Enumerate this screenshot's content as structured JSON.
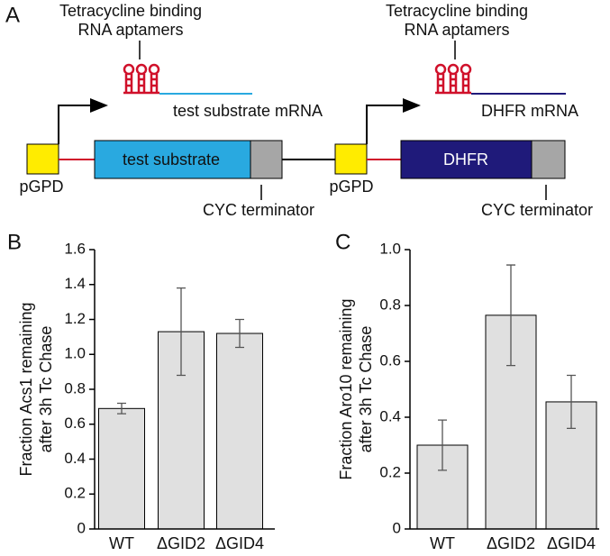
{
  "diagram": {
    "panel": "A",
    "constructs": [
      {
        "aptamer_label": [
          "Tetracycline binding",
          "RNA aptamers"
        ],
        "mrna": "test substrate mRNA",
        "promoter": "pGPD",
        "gene": "test substrate",
        "terminator": "CYC terminator"
      },
      {
        "aptamer_label": [
          "Tetracycline binding",
          "RNA aptamers"
        ],
        "mrna": "DHFR mRNA",
        "promoter": "pGPD",
        "gene": "DHFR",
        "terminator": "CYC terminator"
      }
    ]
  },
  "chart_data": [
    {
      "type": "bar",
      "panel": "B",
      "ylabel": [
        "Fraction Acs1 remaining",
        "after 3h Tc Chase"
      ],
      "categories": [
        "WT",
        "ΔGID2",
        "ΔGID4"
      ],
      "values": [
        0.69,
        1.13,
        1.12
      ],
      "errors": [
        0.03,
        0.25,
        0.08
      ],
      "color": "#e0e0e0",
      "ylim": [
        0,
        1.6
      ],
      "yticks": [
        0,
        0.2,
        0.4,
        0.6,
        0.8,
        {
          "value": 1,
          "label": "1.0"
        },
        1.2,
        1.4,
        1.6
      ]
    },
    {
      "type": "bar",
      "panel": "C",
      "ylabel": [
        "Fraction Aro10 remaining",
        "after 3h Tc Chase"
      ],
      "categories": [
        "WT",
        "ΔGID2",
        "ΔGID4"
      ],
      "values": [
        0.3,
        0.765,
        0.455
      ],
      "errors": [
        0.09,
        0.18,
        0.095
      ],
      "color": "#e0e0e0",
      "ylim": [
        0,
        1
      ],
      "yticks": [
        0,
        0.2,
        0.4,
        0.6,
        0.8,
        {
          "value": 1,
          "label": "1.0"
        }
      ]
    }
  ]
}
